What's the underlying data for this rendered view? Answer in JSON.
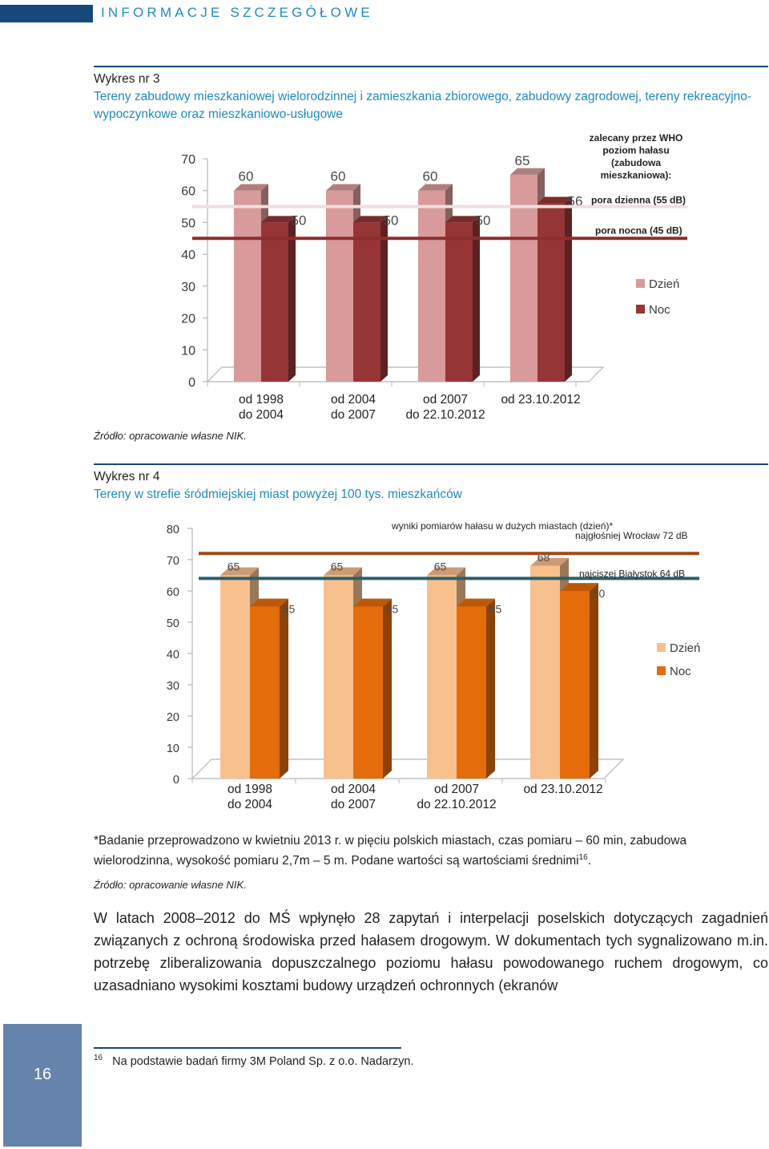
{
  "header": {
    "title": "INFORMACJE SZCZEGÓŁOWE"
  },
  "chart3": {
    "label": "Wykres nr 3",
    "title": "Tereny zabudowy mieszkaniowej wielorodzinnej i zamieszkania zbiorowego, zabudowy zagrodowej, tereny rekreacyjno-wypoczynkowe oraz mieszkaniowo-usługowe",
    "source": "Źródło: opracowanie własne NIK."
  },
  "chart4": {
    "label": "Wykres nr 4",
    "title": "Tereny w strefie śródmiejskiej miast powyżej 100 tys. mieszkańców",
    "note_pre": "*Badanie przeprowadzono w kwietniu 2013 r. w pięciu polskich miastach, czas pomiaru – 60 min, zabudowa wielorodzinna, wysokość pomiaru 2,7m – 5 m. Podane wartości są wartościami średnimi",
    "note_ref": "16",
    "note_post": ".",
    "source": "Źródło: opracowanie własne NIK."
  },
  "body": {
    "paragraph": "W latach 2008–2012 do MŚ wpłynęło 28 zapytań i interpelacji poselskich dotyczących zagadnień związanych z ochroną środowiska przed hałasem drogowym. W dokumentach tych sygnalizowano m.in. potrzebę zliberalizowania dopuszczalnego poziomu hałasu powodowanego ruchem drogowym, co uzasadniano wysokimi kosztami budowy urządzeń ochronnych (ekranów"
  },
  "footnote": {
    "num": "16",
    "text": "Na podstawie badań firmy 3M Poland Sp. z o.o. Nadarzyn."
  },
  "page": {
    "number": "16"
  },
  "chart_data": [
    {
      "type": "bar",
      "categories": [
        [
          "od 1998",
          "do 2004"
        ],
        [
          "od 2004",
          "do 2007"
        ],
        [
          "od 2007",
          "do 22.10.2012"
        ],
        [
          "od 23.10.2012"
        ]
      ],
      "series": [
        {
          "name": "Dzień",
          "values": [
            60,
            60,
            60,
            65
          ],
          "color": "#d89a9a"
        },
        {
          "name": "Noc",
          "values": [
            50,
            50,
            50,
            56
          ],
          "color": "#953535"
        }
      ],
      "ylim": [
        0,
        70
      ],
      "yticks": [
        0,
        10,
        20,
        30,
        40,
        50,
        60,
        70
      ],
      "reference_lines": [
        {
          "value": 55,
          "label": "pora dzienna (55 dB)",
          "color": "#f1dede"
        },
        {
          "value": 45,
          "label": "pora nocna (45 dB)",
          "color": "#8c2e2e"
        }
      ],
      "annotation": [
        "zalecany przez WHO",
        "poziom hałasu",
        "(zabudowa",
        "mieszkaniowa):"
      ],
      "legend_position": "right",
      "grid": false
    },
    {
      "type": "bar",
      "categories": [
        [
          "od 1998",
          "do 2004"
        ],
        [
          "od 2004",
          "do 2007"
        ],
        [
          "od 2007",
          "do 22.10.2012"
        ],
        [
          "od 23.10.2012"
        ]
      ],
      "series": [
        {
          "name": "Dzień",
          "values": [
            65,
            65,
            65,
            68
          ],
          "color": "#f9c08f"
        },
        {
          "name": "Noc",
          "values": [
            55,
            55,
            55,
            60
          ],
          "color": "#e46c0a"
        }
      ],
      "ylim": [
        0,
        80
      ],
      "yticks": [
        0,
        10,
        20,
        30,
        40,
        50,
        60,
        70,
        80
      ],
      "reference_lines": [
        {
          "value": 72,
          "label": "najgłośniej Wrocław 72 dB",
          "color": "#a34a15"
        },
        {
          "value": 64,
          "label": "najciszej  Białystok 64 dB",
          "color": "#2d5f6a"
        }
      ],
      "annotation": [
        "wyniki pomiarów hałasu w  dużych miastach (dzień)*"
      ],
      "legend_position": "right",
      "grid": false
    }
  ]
}
